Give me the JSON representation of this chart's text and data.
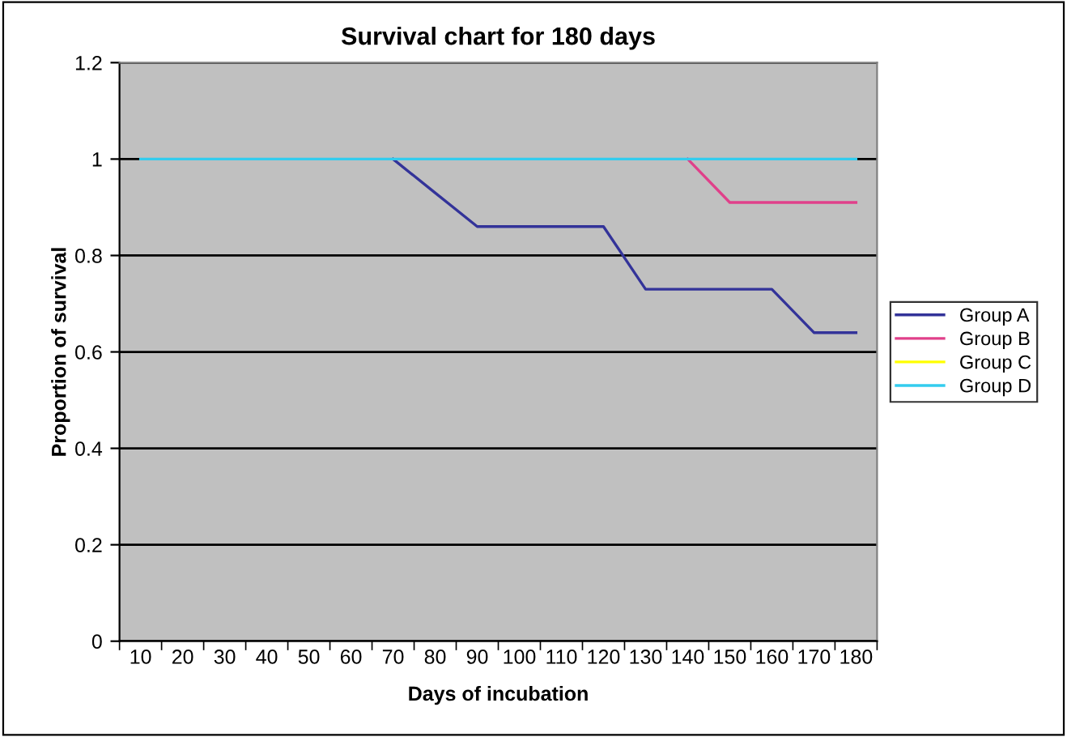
{
  "chart_data": {
    "type": "line",
    "title": "Survival chart for 180 days",
    "xlabel": "Days of incubation",
    "ylabel": "Proportion of survival",
    "categories": [
      "10",
      "20",
      "30",
      "40",
      "50",
      "60",
      "70",
      "80",
      "90",
      "100",
      "110",
      "120",
      "130",
      "140",
      "150",
      "160",
      "170",
      "180"
    ],
    "series": [
      {
        "name": "Group A",
        "color": "#333399",
        "values": [
          null,
          null,
          null,
          null,
          null,
          null,
          1,
          0.93,
          0.86,
          0.86,
          0.86,
          0.86,
          0.73,
          0.73,
          0.73,
          0.73,
          0.64,
          0.64
        ]
      },
      {
        "name": "Group B",
        "color": "#e0408a",
        "values": [
          null,
          null,
          null,
          null,
          null,
          null,
          null,
          null,
          null,
          null,
          null,
          null,
          null,
          1,
          0.91,
          0.91,
          0.91,
          0.91
        ]
      },
      {
        "name": "Group C",
        "color": "#ffff00",
        "values": [
          null,
          null,
          null,
          null,
          null,
          null,
          null,
          null,
          null,
          null,
          null,
          null,
          null,
          null,
          null,
          null,
          null,
          null
        ]
      },
      {
        "name": "Group D",
        "color": "#33ccee",
        "values": [
          1,
          1,
          1,
          1,
          1,
          1,
          1,
          1,
          1,
          1,
          1,
          1,
          1,
          1,
          1,
          1,
          1,
          1
        ]
      }
    ],
    "ylim": [
      0,
      1.2
    ],
    "yticks": [
      0,
      0.2,
      0.4,
      0.6,
      0.8,
      1,
      1.2
    ],
    "grid": "y",
    "legend": "right"
  }
}
